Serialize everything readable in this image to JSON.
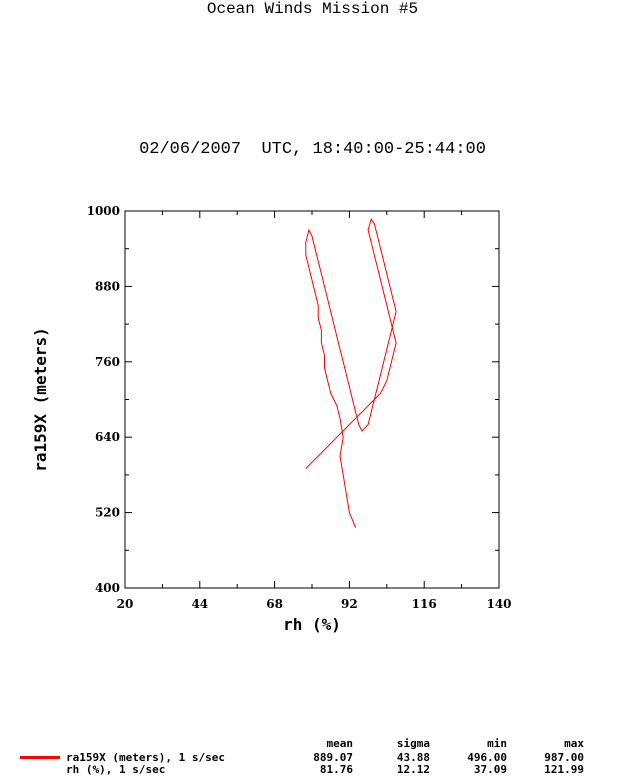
{
  "title": "Ocean Winds Mission #5",
  "subtitle": "02/06/2007  UTC, 18:40:00-25:44:00",
  "colors": {
    "series": "#ff0000",
    "axis": "#000000",
    "background": "#ffffff"
  },
  "chart_data": {
    "type": "line",
    "xlabel": "rh (%)",
    "ylabel": "ra159X (meters)",
    "xlim": [
      20,
      140
    ],
    "ylim": [
      400,
      1000
    ],
    "x_ticks": [
      20,
      44,
      68,
      92,
      116,
      140
    ],
    "y_ticks": [
      400,
      520,
      640,
      760,
      880,
      1000
    ],
    "grid": false,
    "legend_position": "bottom",
    "series": [
      {
        "name": "ra159X (meters), 1 s/sec",
        "color": "#ff0000",
        "x": [
          94,
          92,
          91,
          90,
          89,
          90,
          89,
          88,
          87,
          86,
          85,
          84,
          84,
          83,
          83,
          82,
          82,
          81,
          80,
          79,
          78,
          78,
          79,
          80,
          81,
          82,
          83,
          84,
          85,
          86,
          87,
          88,
          89,
          90,
          91,
          92,
          93,
          94,
          95,
          96,
          97,
          98,
          99,
          100,
          101,
          102,
          103,
          104,
          105,
          106,
          107,
          106,
          105,
          104,
          103,
          102,
          101,
          100,
          99,
          98,
          99,
          100,
          101,
          102,
          103,
          104,
          105,
          106,
          107,
          106,
          105,
          104,
          103,
          102,
          100,
          98,
          96,
          94,
          92,
          90,
          88,
          86,
          84,
          82,
          80,
          78
        ],
        "y": [
          496,
          520,
          550,
          580,
          610,
          640,
          670,
          690,
          700,
          710,
          730,
          750,
          770,
          790,
          810,
          830,
          850,
          870,
          890,
          910,
          930,
          950,
          970,
          960,
          940,
          920,
          900,
          880,
          860,
          840,
          820,
          800,
          780,
          760,
          740,
          720,
          700,
          680,
          660,
          650,
          655,
          660,
          680,
          700,
          720,
          740,
          760,
          780,
          800,
          820,
          840,
          860,
          880,
          900,
          920,
          940,
          960,
          980,
          987,
          970,
          950,
          930,
          910,
          890,
          870,
          850,
          830,
          810,
          790,
          770,
          750,
          730,
          720,
          710,
          700,
          690,
          680,
          670,
          660,
          650,
          640,
          630,
          620,
          610,
          600,
          590
        ]
      }
    ]
  },
  "stats": {
    "headers": [
      "mean",
      "sigma",
      "min",
      "max"
    ],
    "rows": [
      {
        "label": "ra159X (meters), 1 s/sec",
        "mean": "889.07",
        "sigma": "43.88",
        "min": "496.00",
        "max": "987.00"
      },
      {
        "label": "rh (%), 1 s/sec",
        "mean": "81.76",
        "sigma": "12.12",
        "min": "37.09",
        "max": "121.99"
      }
    ]
  }
}
